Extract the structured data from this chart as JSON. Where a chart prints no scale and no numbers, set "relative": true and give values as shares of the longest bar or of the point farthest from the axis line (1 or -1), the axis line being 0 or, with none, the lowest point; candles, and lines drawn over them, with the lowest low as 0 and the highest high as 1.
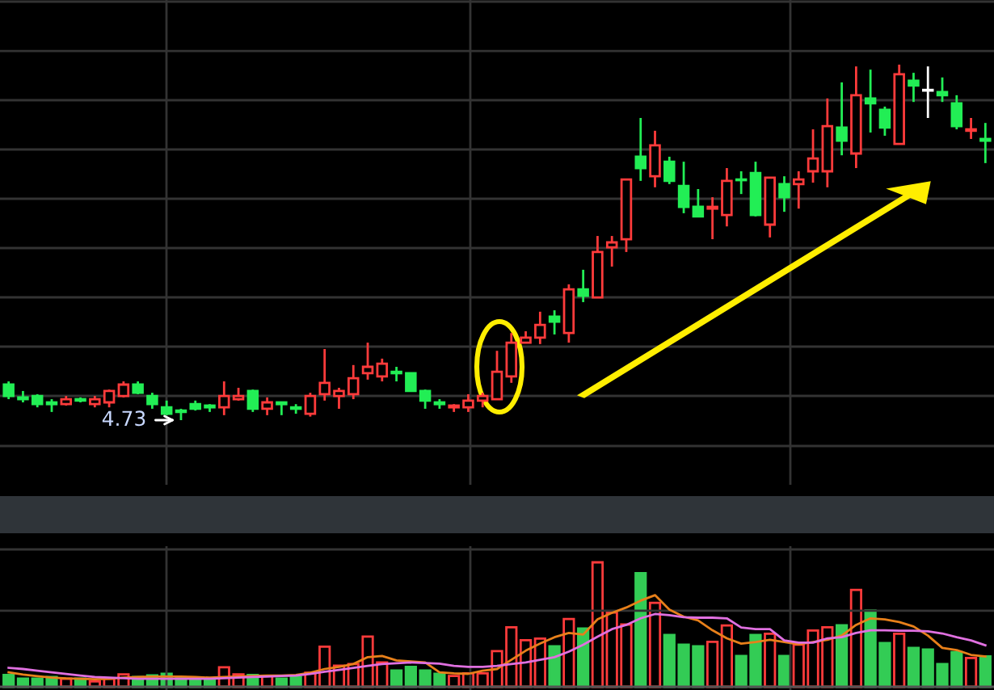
{
  "chart_data": [
    {
      "type": "candlestick",
      "relative": true,
      "grid": true,
      "categories": [
        null,
        null,
        null,
        null,
        null,
        null,
        null,
        null,
        null,
        null,
        null,
        null,
        null,
        null,
        null,
        null,
        null,
        null,
        null,
        null,
        null,
        null,
        null,
        null,
        null,
        null,
        null,
        null,
        null,
        null,
        null,
        null,
        null,
        null,
        null,
        null,
        null,
        null,
        null,
        null,
        null,
        null,
        null,
        null,
        null,
        null,
        null,
        null,
        null,
        null,
        null,
        null,
        null,
        null,
        null,
        null,
        null,
        null,
        null,
        null,
        null,
        null,
        null,
        null,
        null,
        null,
        null,
        null,
        null
      ],
      "ohlc": [
        [
          0.1,
          0.109,
          0.059,
          0.068
        ],
        [
          0.064,
          0.082,
          0.05,
          0.059
        ],
        [
          0.068,
          0.073,
          0.036,
          0.045
        ],
        [
          0.05,
          0.059,
          0.023,
          0.045
        ],
        [
          0.045,
          0.068,
          0.041,
          0.059
        ],
        [
          0.059,
          0.064,
          0.05,
          0.055
        ],
        [
          0.045,
          0.068,
          0.036,
          0.059
        ],
        [
          0.05,
          0.086,
          0.036,
          0.082
        ],
        [
          0.068,
          0.109,
          0.064,
          0.1
        ],
        [
          0.1,
          0.109,
          0.073,
          0.077
        ],
        [
          0.068,
          0.077,
          0.032,
          0.045
        ],
        [
          0.036,
          0.055,
          0.014,
          0.018
        ],
        [
          0.027,
          0.032,
          0,
          0.023
        ],
        [
          0.045,
          0.055,
          0.027,
          0.032
        ],
        [
          0.041,
          0.045,
          0.023,
          0.036
        ],
        [
          0.036,
          0.109,
          0.014,
          0.068
        ],
        [
          0.059,
          0.091,
          0.055,
          0.068
        ],
        [
          0.082,
          0.086,
          0.023,
          0.032
        ],
        [
          0.032,
          0.064,
          0.014,
          0.05
        ],
        [
          0.05,
          0.05,
          0.014,
          0.045
        ],
        [
          0.036,
          0.045,
          0.018,
          0.032
        ],
        [
          0.018,
          0.077,
          0.01,
          0.068
        ],
        [
          0.073,
          0.2,
          0.055,
          0.105
        ],
        [
          0.068,
          0.091,
          0.032,
          0.082
        ],
        [
          0.073,
          0.155,
          0.059,
          0.118
        ],
        [
          0.132,
          0.218,
          0.114,
          0.15
        ],
        [
          0.123,
          0.173,
          0.109,
          0.159
        ],
        [
          0.136,
          0.15,
          0.109,
          0.132
        ],
        [
          0.132,
          0.132,
          0.082,
          0.082
        ],
        [
          0.082,
          0.086,
          0.032,
          0.055
        ],
        [
          0.05,
          0.059,
          0.032,
          0.045
        ],
        [
          0.036,
          0.045,
          0.023,
          0.041
        ],
        [
          0.036,
          0.073,
          0.023,
          0.055
        ],
        [
          0.055,
          0.077,
          0.036,
          0.068
        ],
        [
          0.059,
          0.195,
          0.059,
          0.136
        ],
        [
          0.123,
          0.245,
          0.105,
          0.218
        ],
        [
          0.218,
          0.25,
          0.218,
          0.232
        ],
        [
          0.232,
          0.305,
          0.214,
          0.268
        ],
        [
          0.291,
          0.309,
          0.241,
          0.277
        ],
        [
          0.245,
          0.382,
          0.218,
          0.368
        ],
        [
          0.368,
          0.423,
          0.332,
          0.35
        ],
        [
          0.345,
          0.518,
          0.345,
          0.473
        ],
        [
          0.486,
          0.518,
          0.432,
          0.5
        ],
        [
          0.509,
          0.677,
          0.473,
          0.677
        ],
        [
          0.741,
          0.85,
          0.673,
          0.709
        ],
        [
          0.686,
          0.814,
          0.655,
          0.773
        ],
        [
          0.727,
          0.741,
          0.664,
          0.673
        ],
        [
          0.659,
          0.727,
          0.582,
          0.6
        ],
        [
          0.6,
          0.65,
          0.573,
          0.573
        ],
        [
          0.595,
          0.627,
          0.509,
          0.6
        ],
        [
          0.577,
          0.709,
          0.545,
          0.673
        ],
        [
          0.677,
          0.7,
          0.636,
          0.675
        ],
        [
          0.695,
          0.727,
          0.573,
          0.577
        ],
        [
          0.55,
          0.682,
          0.514,
          0.682
        ],
        [
          0.664,
          0.686,
          0.586,
          0.627
        ],
        [
          0.664,
          0.7,
          0.595,
          0.677
        ],
        [
          0.7,
          0.818,
          0.668,
          0.736
        ],
        [
          0.7,
          0.905,
          0.655,
          0.827
        ],
        [
          0.823,
          0.95,
          0.745,
          0.786
        ],
        [
          0.75,
          0.995,
          0.709,
          0.914
        ],
        [
          0.905,
          0.986,
          0.809,
          0.891
        ],
        [
          0.873,
          0.882,
          0.8,
          0.823
        ],
        [
          0.777,
          1,
          0.777,
          0.973
        ],
        [
          0.955,
          0.977,
          0.895,
          0.941
        ],
        [
          0.927,
          0.995,
          0.85,
          0.927
        ],
        [
          0.923,
          0.964,
          0.895,
          0.914
        ],
        [
          0.891,
          0.914,
          0.818,
          0.827
        ],
        [
          0.814,
          0.85,
          0.791,
          0.818
        ],
        [
          0.791,
          0.836,
          0.723,
          0.786
        ]
      ],
      "colors": [
        "#22ee55",
        "#22ee55",
        "#22ee55",
        "#22ee55",
        "#ff3b3b",
        "#22ee55",
        "#ff3b3b",
        "#ff3b3b",
        "#ff3b3b",
        "#22ee55",
        "#22ee55",
        "#22ee55",
        "#22ee55",
        "#22ee55",
        "#22ee55",
        "#ff3b3b",
        "#ff3b3b",
        "#22ee55",
        "#ff3b3b",
        "#22ee55",
        "#22ee55",
        "#ff3b3b",
        "#ff3b3b",
        "#ff3b3b",
        "#ff3b3b",
        "#ff3b3b",
        "#ff3b3b",
        "#22ee55",
        "#22ee55",
        "#22ee55",
        "#22ee55",
        "#ff3b3b",
        "#ff3b3b",
        "#ff3b3b",
        "#ff3b3b",
        "#ff3b3b",
        "#ff3b3b",
        "#ff3b3b",
        "#22ee55",
        "#ff3b3b",
        "#22ee55",
        "#ff3b3b",
        "#ff3b3b",
        "#ff3b3b",
        "#22ee55",
        "#ff3b3b",
        "#22ee55",
        "#22ee55",
        "#22ee55",
        "#ff3b3b",
        "#ff3b3b",
        "#22ee55",
        "#22ee55",
        "#ff3b3b",
        "#22ee55",
        "#ff3b3b",
        "#ff3b3b",
        "#ff3b3b",
        "#22ee55",
        "#ff3b3b",
        "#22ee55",
        "#22ee55",
        "#ff3b3b",
        "#22ee55",
        "#ffffff",
        "#22ee55",
        "#22ee55",
        "#ff3b3b",
        "#22ee55"
      ],
      "annotations": [
        "4.73"
      ]
    },
    {
      "type": "bar",
      "relative": true,
      "categories": [
        null,
        null,
        null,
        null,
        null,
        null,
        null,
        null,
        null,
        null,
        null,
        null,
        null,
        null,
        null,
        null,
        null,
        null,
        null,
        null,
        null,
        null,
        null,
        null,
        null,
        null,
        null,
        null,
        null,
        null,
        null,
        null,
        null,
        null,
        null,
        null,
        null,
        null,
        null,
        null,
        null,
        null,
        null,
        null,
        null,
        null,
        null,
        null,
        null,
        null,
        null,
        null,
        null,
        null,
        null,
        null,
        null,
        null,
        null,
        null,
        null,
        null,
        null,
        null,
        null,
        null,
        null,
        null,
        null
      ],
      "series": [
        {
          "type": "bar",
          "colors": [
            "#33cc55",
            "#33cc55",
            "#33cc55",
            "#33cc55",
            "#ff3b3b",
            "#33cc55",
            "#ff3b3b",
            "#ff3b3b",
            "#ff3b3b",
            "#33cc55",
            "#33cc55",
            "#33cc55",
            "#33cc55",
            "#33cc55",
            "#33cc55",
            "#ff3b3b",
            "#ff3b3b",
            "#33cc55",
            "#ff3b3b",
            "#33cc55",
            "#33cc55",
            "#ff3b3b",
            "#ff3b3b",
            "#ff3b3b",
            "#ff3b3b",
            "#ff3b3b",
            "#ff3b3b",
            "#33cc55",
            "#33cc55",
            "#33cc55",
            "#33cc55",
            "#ff3b3b",
            "#ff3b3b",
            "#ff3b3b",
            "#ff3b3b",
            "#ff3b3b",
            "#ff3b3b",
            "#ff3b3b",
            "#33cc55",
            "#ff3b3b",
            "#33cc55",
            "#ff3b3b",
            "#ff3b3b",
            "#ff3b3b",
            "#33cc55",
            "#ff3b3b",
            "#33cc55",
            "#33cc55",
            "#33cc55",
            "#ff3b3b",
            "#ff3b3b",
            "#33cc55",
            "#33cc55",
            "#ff3b3b",
            "#33cc55",
            "#ff3b3b",
            "#ff3b3b",
            "#ff3b3b",
            "#33cc55",
            "#ff3b3b",
            "#33cc55",
            "#33cc55",
            "#ff3b3b",
            "#33cc55",
            "#33cc55",
            "#33cc55",
            "#33cc55",
            "#ff3b3b",
            "#33cc55"
          ],
          "values": [
            0.095,
            0.065,
            0.065,
            0.078,
            0.065,
            0.065,
            0.043,
            0.065,
            0.1,
            0.078,
            0.091,
            0.104,
            0.074,
            0.074,
            0.052,
            0.156,
            0.1,
            0.095,
            0.087,
            0.065,
            0.078,
            0.113,
            0.322,
            0.169,
            0.183,
            0.404,
            0.196,
            0.13,
            0.16,
            0.13,
            0.104,
            0.087,
            0.108,
            0.108,
            0.287,
            0.478,
            0.374,
            0.387,
            0.326,
            0.544,
            0.469,
            1,
            0.596,
            0.5,
            0.913,
            0.674,
            0.417,
            0.339,
            0.326,
            0.361,
            0.492,
            0.248,
            0.417,
            0.426,
            0.248,
            0.339,
            0.452,
            0.478,
            0.495,
            0.778,
            0.613,
            0.352,
            0.426,
            0.313,
            0.3,
            0.183,
            0.278,
            0.231,
            0.244
          ]
        }
      ]
    },
    {
      "type": "line",
      "relative": true,
      "grid": true,
      "ref_lines": [
        {
          "axis": "y",
          "value": 0.83,
          "color": "#333333"
        }
      ],
      "categories": [
        null,
        null,
        null,
        null,
        null,
        null,
        null,
        null,
        null,
        null,
        null,
        null,
        null,
        null,
        null,
        null,
        null,
        null,
        null,
        null,
        null,
        null,
        null,
        null,
        null,
        null,
        null,
        null,
        null,
        null,
        null,
        null,
        null,
        null,
        null,
        null,
        null,
        null,
        null,
        null,
        null,
        null,
        null,
        null,
        null,
        null,
        null,
        null,
        null,
        null,
        null,
        null,
        null,
        null,
        null,
        null,
        null,
        null,
        null,
        null,
        null,
        null,
        null,
        null,
        null,
        null,
        null,
        null,
        null
      ],
      "series": [
        {
          "color": "#e8801a",
          "values": [
            0.158,
            0.133,
            0.115,
            0.1,
            0.092,
            0.088,
            0.083,
            0.088,
            0.1,
            0.106,
            0.111,
            0.111,
            0.111,
            0.106,
            0.1,
            0.106,
            0.111,
            0.118,
            0.123,
            0.123,
            0.129,
            0.153,
            0.194,
            0.217,
            0.248,
            0.323,
            0.336,
            0.288,
            0.277,
            0.265,
            0.158,
            0.146,
            0.141,
            0.176,
            0.194,
            0.295,
            0.394,
            0.471,
            0.541,
            0.587,
            0.57,
            0.736,
            0.807,
            0.865,
            0.94,
            1,
            0.842,
            0.765,
            0.724,
            0.617,
            0.529,
            0.471,
            0.489,
            0.512,
            0.489,
            0.464,
            0.489,
            0.512,
            0.559,
            0.675,
            0.747,
            0.736,
            0.706,
            0.658,
            0.559,
            0.424,
            0.401,
            0.348,
            0.33
          ]
        },
        {
          "color": "#e070e0",
          "values": [
            0.207,
            0.194,
            0.176,
            0.158,
            0.141,
            0.123,
            0.106,
            0.1,
            0.093,
            0.088,
            0.088,
            0.088,
            0.088,
            0.088,
            0.088,
            0.093,
            0.1,
            0.106,
            0.111,
            0.118,
            0.123,
            0.141,
            0.164,
            0.185,
            0.207,
            0.229,
            0.248,
            0.256,
            0.265,
            0.26,
            0.252,
            0.229,
            0.217,
            0.217,
            0.229,
            0.248,
            0.265,
            0.295,
            0.323,
            0.383,
            0.459,
            0.547,
            0.629,
            0.675,
            0.747,
            0.794,
            0.782,
            0.759,
            0.754,
            0.754,
            0.747,
            0.647,
            0.629,
            0.629,
            0.506,
            0.482,
            0.482,
            0.529,
            0.541,
            0.587,
            0.617,
            0.617,
            0.612,
            0.612,
            0.605,
            0.582,
            0.541,
            0.506,
            0.453
          ]
        }
      ]
    }
  ]
}
